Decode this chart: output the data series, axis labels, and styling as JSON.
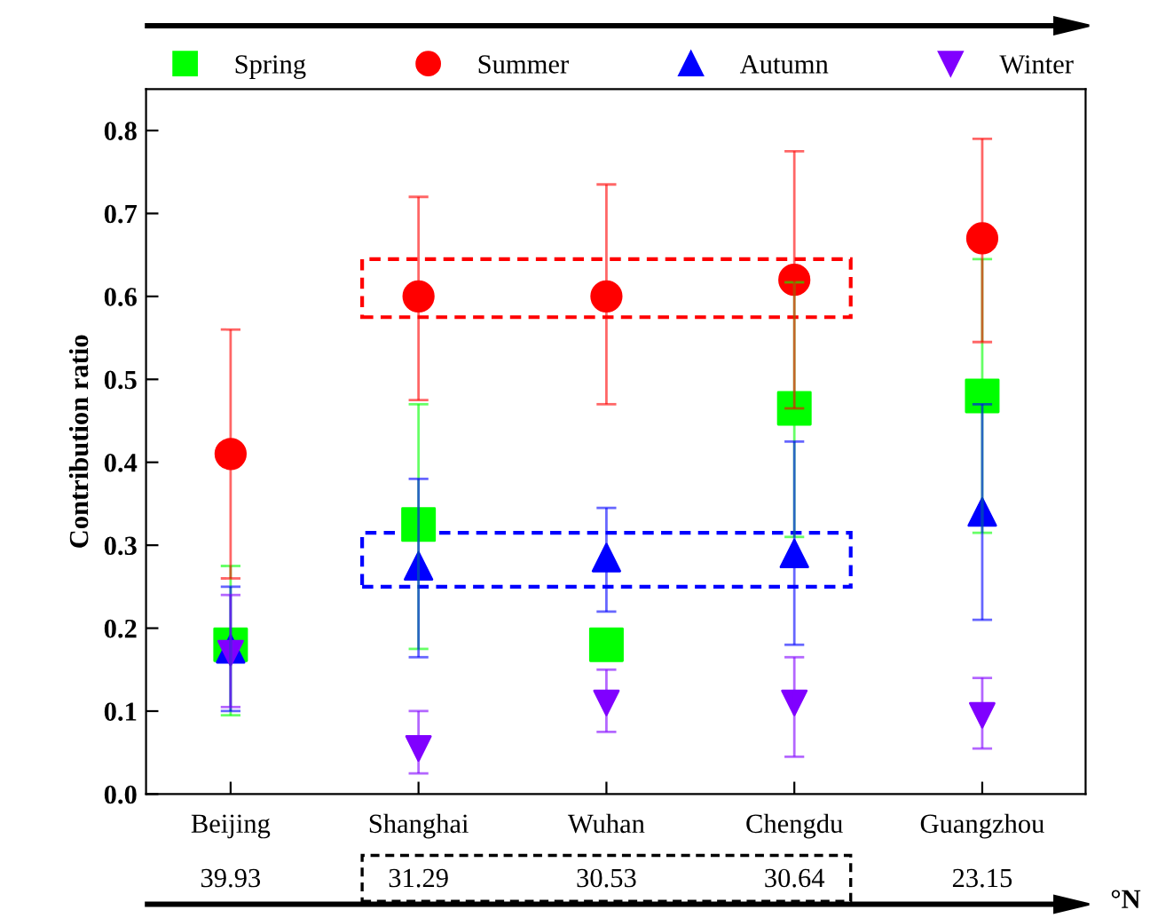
{
  "chart_data": {
    "type": "scatter",
    "ylabel": "Contribution ratio",
    "categories": [
      "Beijing",
      "Shanghai",
      "Wuhan",
      "Chengdu",
      "Guangzhou"
    ],
    "series": [
      {
        "name": "Spring",
        "color": "#00ff00",
        "marker": "square",
        "values": [
          0.18,
          0.325,
          0.18,
          0.465,
          0.48
        ],
        "errors": [
          [
            0.095,
            0.275
          ],
          [
            0.175,
            0.47
          ],
          null,
          [
            0.31,
            0.617
          ],
          [
            0.315,
            0.645
          ]
        ]
      },
      {
        "name": "Summer",
        "color": "#ff0000",
        "marker": "circle",
        "values": [
          0.41,
          0.6,
          0.6,
          0.62,
          0.67
        ],
        "errors": [
          [
            0.26,
            0.56
          ],
          [
            0.475,
            0.72
          ],
          [
            0.47,
            0.735
          ],
          [
            0.465,
            0.775
          ],
          [
            0.545,
            0.79
          ]
        ]
      },
      {
        "name": "Autumn",
        "color": "#0000ff",
        "marker": "triangle",
        "values": [
          0.175,
          0.275,
          0.285,
          0.29,
          0.34
        ],
        "errors": [
          [
            0.1,
            0.25
          ],
          [
            0.165,
            0.38
          ],
          [
            0.22,
            0.345
          ],
          [
            0.18,
            0.425
          ],
          [
            0.21,
            0.47
          ]
        ]
      },
      {
        "name": "Winter",
        "color": "#8000ff",
        "marker": "triangle_down",
        "values": [
          0.17,
          0.055,
          0.11,
          0.11,
          0.095
        ],
        "errors": [
          [
            0.105,
            0.24
          ],
          [
            0.025,
            0.1
          ],
          [
            0.075,
            0.15
          ],
          [
            0.045,
            0.165
          ],
          [
            0.055,
            0.14
          ]
        ]
      }
    ],
    "ylim": [
      0,
      0.85
    ],
    "yticks": [
      {
        "value": 0,
        "label": "0.0"
      },
      0.1,
      0.2,
      0.3,
      0.4,
      0.5,
      0.6,
      0.7,
      0.8
    ],
    "legend": "top",
    "grid": false,
    "annotations": [
      "39.93",
      "31.29",
      "30.53",
      "30.64",
      "23.15",
      "°N"
    ]
  }
}
